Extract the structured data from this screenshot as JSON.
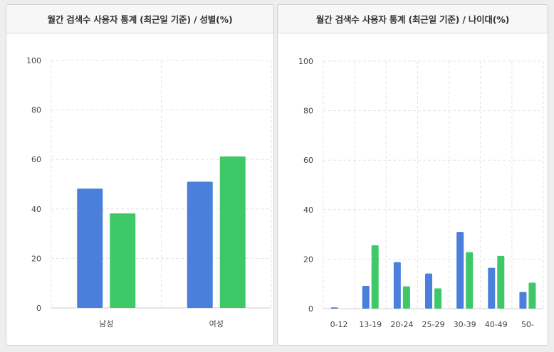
{
  "colors": {
    "series1": "#4a7fdc",
    "series2": "#3fc867"
  },
  "chart_data": [
    {
      "type": "bar",
      "title": "월간 검색수 사용자 통계 (최근일 기준) / 성별(%)",
      "categories": [
        "남성",
        "여성"
      ],
      "series": [
        {
          "values": [
            48.2,
            51.0
          ]
        },
        {
          "values": [
            38.2,
            61.2
          ]
        }
      ],
      "ylim": [
        0,
        100
      ],
      "yticks": [
        0,
        20,
        40,
        60,
        80,
        100
      ],
      "grid": true
    },
    {
      "type": "bar",
      "title": "월간 검색수 사용자 통계 (최근일 기준) / 나이대(%)",
      "categories": [
        "0-12",
        "13-19",
        "20-24",
        "25-29",
        "30-39",
        "40-49",
        "50-"
      ],
      "series": [
        {
          "values": [
            0.5,
            9.2,
            18.8,
            14.2,
            31.0,
            16.5,
            6.7
          ]
        },
        {
          "values": [
            0,
            25.6,
            9.0,
            8.2,
            22.8,
            21.3,
            10.5
          ]
        }
      ],
      "ylim": [
        0,
        100
      ],
      "yticks": [
        0,
        20,
        40,
        60,
        80,
        100
      ],
      "grid": true
    }
  ]
}
